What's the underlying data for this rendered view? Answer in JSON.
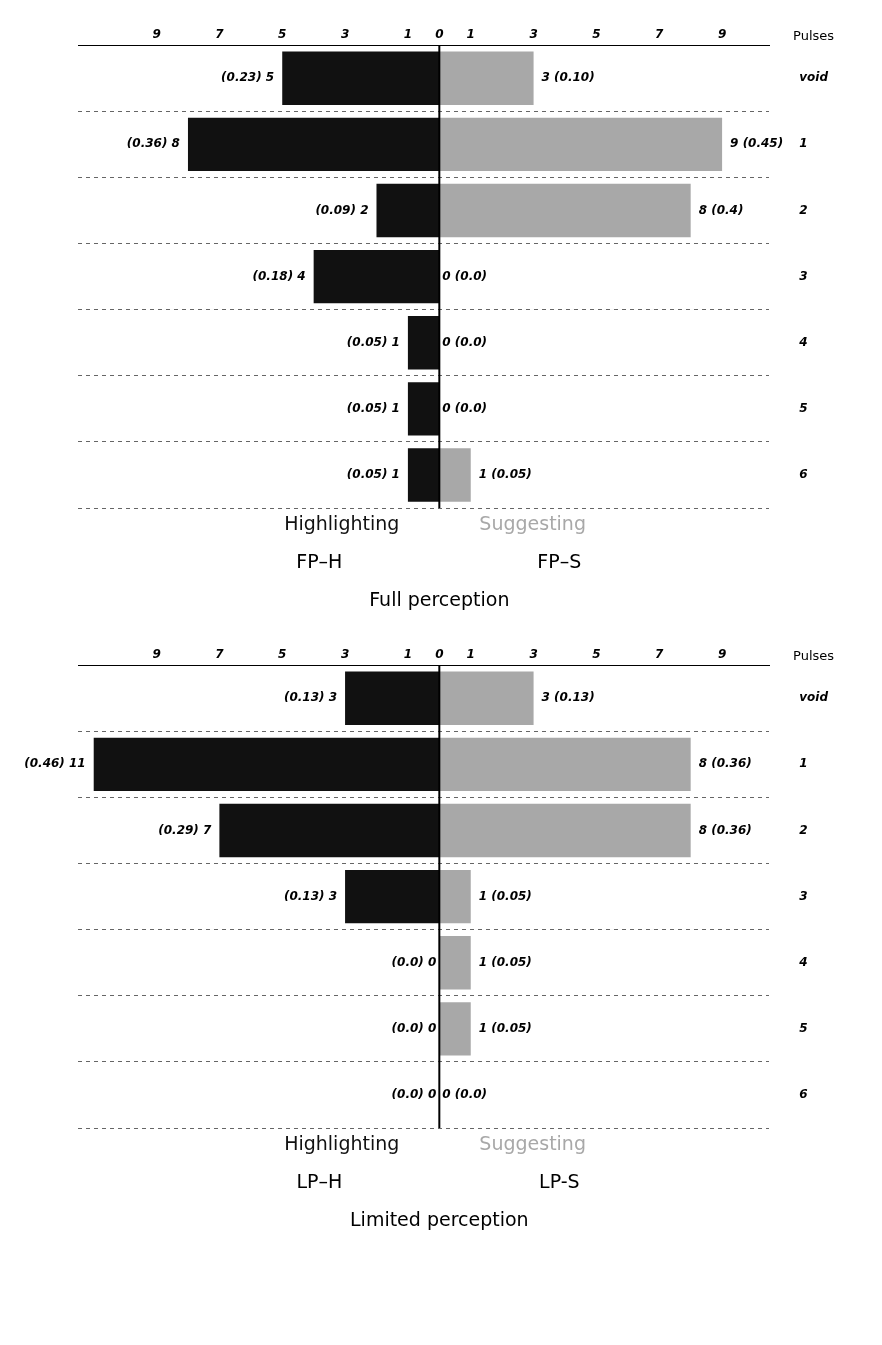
{
  "chart_data": [
    {
      "type": "bar",
      "orientation": "horizontal",
      "stacked": true,
      "xlabel": "Full perception",
      "ylabel": "Pulses",
      "categories": [
        "void",
        "1",
        "2",
        "3",
        "4",
        "5",
        "6"
      ],
      "series": [
        {
          "name": "Highlighting",
          "color": "#111111",
          "values": [
            -5,
            -8,
            -2,
            -4,
            -1,
            -1,
            -1
          ],
          "value_labels": [
            "(0.23) 5",
            "(0.36) 8",
            "(0.09) 2",
            "(0.18) 4",
            "(0.05) 1",
            "(0.05) 1",
            "(0.05) 1"
          ]
        },
        {
          "name": "Suggesting",
          "color": "#a8a8a8",
          "values": [
            3,
            9,
            8,
            0,
            0,
            0,
            1
          ],
          "value_labels": [
            "3 (0.10)",
            "9 (0.45)",
            "8 (0.4)",
            "0 (0.0)",
            "0 (0.0)",
            "0 (0.0)",
            "1 (0.05)"
          ]
        }
      ],
      "annotations": [
        "FP–H",
        "FP–S"
      ],
      "xlim": [
        -11.5,
        10.5
      ],
      "xticks": [
        {
          "value": -9,
          "label": "9"
        },
        {
          "value": -7,
          "label": "7"
        },
        {
          "value": -5,
          "label": "5"
        },
        {
          "value": -3,
          "label": "3"
        },
        {
          "value": -1,
          "label": "1"
        },
        0,
        1,
        3,
        5,
        7,
        9
      ],
      "ref_lines": [
        {
          "axis": "x",
          "value": 0,
          "color": "#000000"
        }
      ],
      "grid": "y",
      "line_style": "dashed",
      "legend": false
    },
    {
      "type": "bar",
      "orientation": "horizontal",
      "stacked": true,
      "xlabel": "Limited perception",
      "ylabel": "Pulses",
      "categories": [
        "void",
        "1",
        "2",
        "3",
        "4",
        "5",
        "6"
      ],
      "series": [
        {
          "name": "Highlighting",
          "color": "#111111",
          "values": [
            -3,
            -11,
            -7,
            -3,
            0,
            0,
            0
          ],
          "value_labels": [
            "(0.13) 3",
            "(0.46) 11",
            "(0.29) 7",
            "(0.13) 3",
            "(0.0) 0",
            "(0.0) 0",
            "(0.0) 0"
          ]
        },
        {
          "name": "Suggesting",
          "color": "#a8a8a8",
          "values": [
            3,
            8,
            8,
            1,
            1,
            1,
            0
          ],
          "value_labels": [
            "3 (0.13)",
            "8 (0.36)",
            "8 (0.36)",
            "1 (0.05)",
            "1 (0.05)",
            "1 (0.05)",
            "0 (0.0)"
          ]
        }
      ],
      "annotations": [
        "LP–H",
        "LP-S"
      ],
      "xlim": [
        -11.5,
        10.5
      ],
      "xticks": [
        {
          "value": -9,
          "label": "9"
        },
        {
          "value": -7,
          "label": "7"
        },
        {
          "value": -5,
          "label": "5"
        },
        {
          "value": -3,
          "label": "3"
        },
        {
          "value": -1,
          "label": "1"
        },
        0,
        1,
        3,
        5,
        7,
        9
      ],
      "ref_lines": [
        {
          "axis": "x",
          "value": 0,
          "color": "#000000"
        }
      ],
      "grid": "y",
      "line_style": "dashed",
      "legend": false
    }
  ]
}
